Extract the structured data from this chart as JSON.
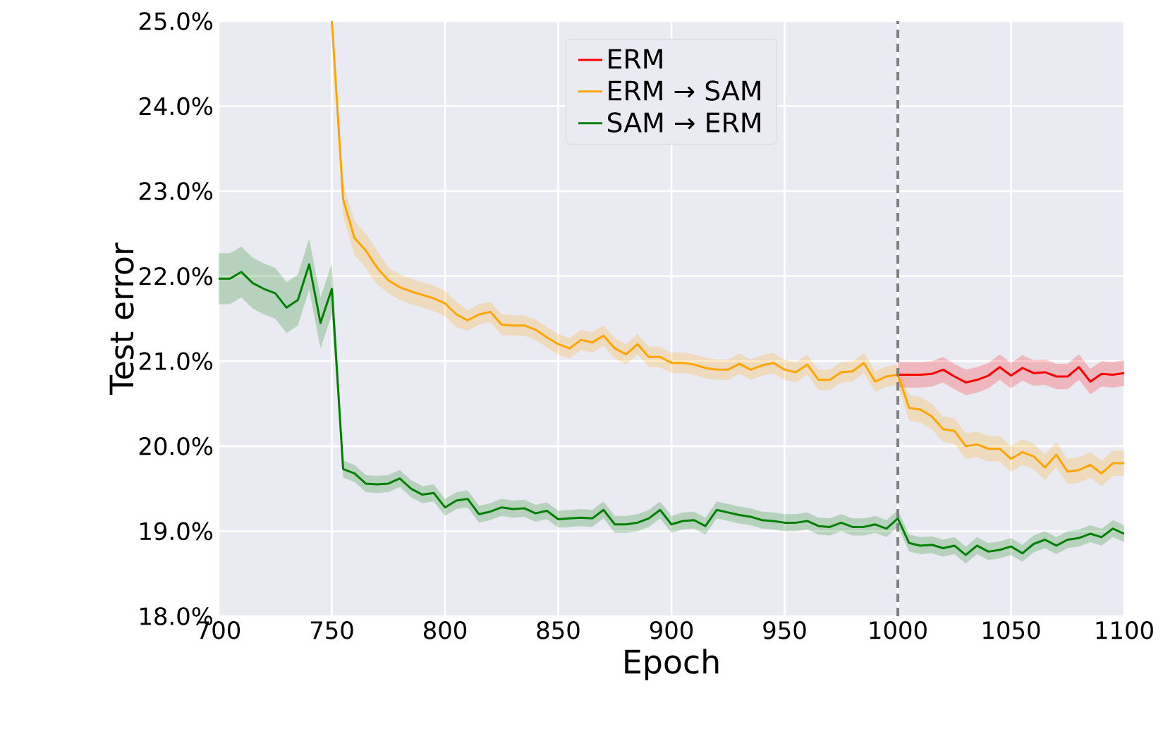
{
  "chart_data": {
    "type": "line",
    "xlabel": "Epoch",
    "ylabel": "Test error",
    "xlim": [
      700,
      1100
    ],
    "ylim": [
      18,
      25
    ],
    "xticks": [
      700,
      750,
      800,
      850,
      900,
      950,
      1000,
      1050,
      1100
    ],
    "yticks": [
      {
        "value": 18,
        "label": "18.0%"
      },
      {
        "value": 19,
        "label": "19.0%"
      },
      {
        "value": 20,
        "label": "20.0%"
      },
      {
        "value": 21,
        "label": "21.0%"
      },
      {
        "value": 22,
        "label": "22.0%"
      },
      {
        "value": 23,
        "label": "23.0%"
      },
      {
        "value": 24,
        "label": "24.0%"
      },
      {
        "value": 25,
        "label": "25.0%"
      }
    ],
    "grid": true,
    "legend": "top",
    "ref_lines": [
      {
        "axis": "x",
        "value": 1000,
        "color": "#808080",
        "line_style": "dashed"
      }
    ],
    "series": [
      {
        "name": "ERM",
        "color": "#ff0000",
        "x": [
          1000,
          1005,
          1010,
          1015,
          1020,
          1025,
          1030,
          1035,
          1040,
          1045,
          1050,
          1055,
          1060,
          1065,
          1070,
          1075,
          1080,
          1085,
          1090,
          1095,
          1100
        ],
        "values": [
          20.84,
          20.84,
          20.84,
          20.85,
          20.9,
          20.82,
          20.75,
          20.78,
          20.83,
          20.93,
          20.83,
          20.92,
          20.86,
          20.87,
          20.82,
          20.82,
          20.93,
          20.76,
          20.85,
          20.84,
          20.86
        ],
        "lower": [
          20.69,
          20.69,
          20.69,
          20.7,
          20.75,
          20.67,
          20.6,
          20.63,
          20.68,
          20.78,
          20.68,
          20.77,
          20.71,
          20.72,
          20.67,
          20.67,
          20.78,
          20.61,
          20.7,
          20.69,
          20.71
        ],
        "upper": [
          20.99,
          20.99,
          20.99,
          21.0,
          21.05,
          20.97,
          20.9,
          20.93,
          20.98,
          21.08,
          20.98,
          21.07,
          21.01,
          21.02,
          20.97,
          20.97,
          21.08,
          20.91,
          21.0,
          20.99,
          21.01
        ]
      },
      {
        "name": "ERM → SAM",
        "color": "#ffa500",
        "x": [
          750,
          755,
          760,
          765,
          770,
          775,
          780,
          785,
          790,
          795,
          800,
          805,
          810,
          815,
          820,
          825,
          830,
          835,
          840,
          845,
          850,
          855,
          860,
          865,
          870,
          875,
          880,
          885,
          890,
          895,
          900,
          905,
          910,
          915,
          920,
          925,
          930,
          935,
          940,
          945,
          950,
          955,
          960,
          965,
          970,
          975,
          980,
          985,
          990,
          995,
          1000,
          1005,
          1010,
          1015,
          1020,
          1025,
          1030,
          1035,
          1040,
          1045,
          1050,
          1055,
          1060,
          1065,
          1070,
          1075,
          1080,
          1085,
          1090,
          1095,
          1100
        ],
        "values": [
          25.0,
          22.9,
          22.45,
          22.3,
          22.1,
          21.95,
          21.87,
          21.82,
          21.78,
          21.74,
          21.68,
          21.55,
          21.48,
          21.55,
          21.58,
          21.43,
          21.42,
          21.42,
          21.37,
          21.28,
          21.2,
          21.15,
          21.25,
          21.22,
          21.3,
          21.15,
          21.08,
          21.2,
          21.05,
          21.05,
          20.98,
          20.98,
          20.96,
          20.92,
          20.9,
          20.9,
          20.97,
          20.9,
          20.95,
          20.98,
          20.9,
          20.87,
          20.96,
          20.78,
          20.78,
          20.87,
          20.88,
          20.98,
          20.76,
          20.82,
          20.84,
          20.45,
          20.43,
          20.35,
          20.2,
          20.18,
          20.0,
          20.02,
          19.97,
          19.97,
          19.85,
          19.93,
          19.88,
          19.75,
          19.9,
          19.7,
          19.72,
          19.78,
          19.68,
          19.8,
          19.8
        ],
        "lower": [
          25.0,
          22.7,
          22.25,
          22.1,
          21.9,
          21.8,
          21.72,
          21.67,
          21.63,
          21.59,
          21.53,
          21.4,
          21.36,
          21.43,
          21.46,
          21.31,
          21.3,
          21.3,
          21.25,
          21.16,
          21.08,
          21.03,
          21.13,
          21.1,
          21.18,
          21.03,
          20.96,
          21.08,
          20.93,
          20.93,
          20.86,
          20.86,
          20.84,
          20.8,
          20.78,
          20.78,
          20.85,
          20.78,
          20.83,
          20.86,
          20.78,
          20.75,
          20.84,
          20.66,
          20.66,
          20.75,
          20.76,
          20.86,
          20.64,
          20.7,
          20.72,
          20.3,
          20.28,
          20.2,
          20.05,
          20.03,
          19.85,
          19.87,
          19.82,
          19.82,
          19.7,
          19.78,
          19.73,
          19.6,
          19.75,
          19.55,
          19.57,
          19.63,
          19.53,
          19.65,
          19.65
        ],
        "upper": [
          25.0,
          23.1,
          22.65,
          22.5,
          22.3,
          22.1,
          22.02,
          21.97,
          21.93,
          21.89,
          21.83,
          21.7,
          21.6,
          21.67,
          21.7,
          21.55,
          21.54,
          21.54,
          21.49,
          21.4,
          21.32,
          21.27,
          21.37,
          21.34,
          21.42,
          21.27,
          21.2,
          21.32,
          21.17,
          21.17,
          21.1,
          21.1,
          21.08,
          21.04,
          21.02,
          21.02,
          21.09,
          21.02,
          21.07,
          21.1,
          21.02,
          20.99,
          21.08,
          20.9,
          20.9,
          20.99,
          21.0,
          21.1,
          20.88,
          20.94,
          20.96,
          20.6,
          20.58,
          20.5,
          20.35,
          20.33,
          20.15,
          20.17,
          20.12,
          20.12,
          20.0,
          20.08,
          20.03,
          19.9,
          20.05,
          19.85,
          19.87,
          19.93,
          19.83,
          19.95,
          19.95
        ]
      },
      {
        "name": "SAM → ERM",
        "color": "#008000",
        "x": [
          700,
          705,
          710,
          715,
          720,
          725,
          730,
          735,
          740,
          745,
          750,
          755,
          760,
          765,
          770,
          775,
          780,
          785,
          790,
          795,
          800,
          805,
          810,
          815,
          820,
          825,
          830,
          835,
          840,
          845,
          850,
          855,
          860,
          865,
          870,
          875,
          880,
          885,
          890,
          895,
          900,
          905,
          910,
          915,
          920,
          925,
          930,
          935,
          940,
          945,
          950,
          955,
          960,
          965,
          970,
          975,
          980,
          985,
          990,
          995,
          1000,
          1005,
          1010,
          1015,
          1020,
          1025,
          1030,
          1035,
          1040,
          1045,
          1050,
          1055,
          1060,
          1065,
          1070,
          1075,
          1080,
          1085,
          1090,
          1095,
          1100
        ],
        "values": [
          21.97,
          21.97,
          22.05,
          21.92,
          21.85,
          21.8,
          21.63,
          21.72,
          22.14,
          21.45,
          21.85,
          19.73,
          19.68,
          19.56,
          19.55,
          19.56,
          19.62,
          19.5,
          19.43,
          19.45,
          19.28,
          19.36,
          19.38,
          19.2,
          19.23,
          19.28,
          19.26,
          19.27,
          19.21,
          19.24,
          19.14,
          19.15,
          19.16,
          19.15,
          19.25,
          19.08,
          19.08,
          19.1,
          19.15,
          19.25,
          19.08,
          19.12,
          19.13,
          19.06,
          19.25,
          19.22,
          19.19,
          19.17,
          19.13,
          19.12,
          19.1,
          19.1,
          19.12,
          19.06,
          19.05,
          19.1,
          19.05,
          19.05,
          19.08,
          19.03,
          19.15,
          18.86,
          18.83,
          18.84,
          18.8,
          18.83,
          18.72,
          18.83,
          18.76,
          18.78,
          18.82,
          18.74,
          18.85,
          18.9,
          18.83,
          18.9,
          18.92,
          18.97,
          18.93,
          19.03,
          18.97
        ],
        "lower": [
          21.67,
          21.67,
          21.75,
          21.62,
          21.55,
          21.5,
          21.33,
          21.42,
          21.84,
          21.15,
          21.55,
          19.63,
          19.58,
          19.46,
          19.45,
          19.46,
          19.52,
          19.4,
          19.33,
          19.35,
          19.18,
          19.26,
          19.28,
          19.1,
          19.13,
          19.18,
          19.16,
          19.17,
          19.11,
          19.14,
          19.04,
          19.05,
          19.06,
          19.05,
          19.15,
          18.98,
          18.98,
          19.0,
          19.05,
          19.15,
          18.98,
          19.02,
          19.03,
          18.96,
          19.15,
          19.12,
          19.09,
          19.07,
          19.03,
          19.02,
          19.0,
          19.0,
          19.02,
          18.96,
          18.95,
          19.0,
          18.95,
          18.95,
          18.98,
          18.93,
          19.05,
          18.76,
          18.73,
          18.74,
          18.7,
          18.73,
          18.62,
          18.73,
          18.66,
          18.68,
          18.72,
          18.64,
          18.75,
          18.8,
          18.73,
          18.8,
          18.82,
          18.87,
          18.83,
          18.93,
          18.87
        ],
        "upper": [
          22.27,
          22.27,
          22.35,
          22.22,
          22.15,
          22.1,
          21.93,
          22.02,
          22.44,
          21.75,
          22.15,
          19.83,
          19.78,
          19.66,
          19.65,
          19.66,
          19.72,
          19.6,
          19.53,
          19.55,
          19.38,
          19.46,
          19.48,
          19.3,
          19.33,
          19.38,
          19.36,
          19.37,
          19.31,
          19.34,
          19.24,
          19.25,
          19.26,
          19.25,
          19.35,
          19.18,
          19.18,
          19.2,
          19.25,
          19.35,
          19.18,
          19.22,
          19.23,
          19.16,
          19.35,
          19.32,
          19.29,
          19.27,
          19.23,
          19.22,
          19.2,
          19.2,
          19.22,
          19.16,
          19.15,
          19.2,
          19.15,
          19.15,
          19.18,
          19.13,
          19.25,
          18.96,
          18.93,
          18.94,
          18.9,
          18.93,
          18.82,
          18.93,
          18.86,
          18.88,
          18.92,
          18.84,
          18.95,
          19.0,
          18.93,
          19.0,
          19.02,
          19.07,
          19.03,
          19.13,
          19.07
        ]
      }
    ]
  }
}
